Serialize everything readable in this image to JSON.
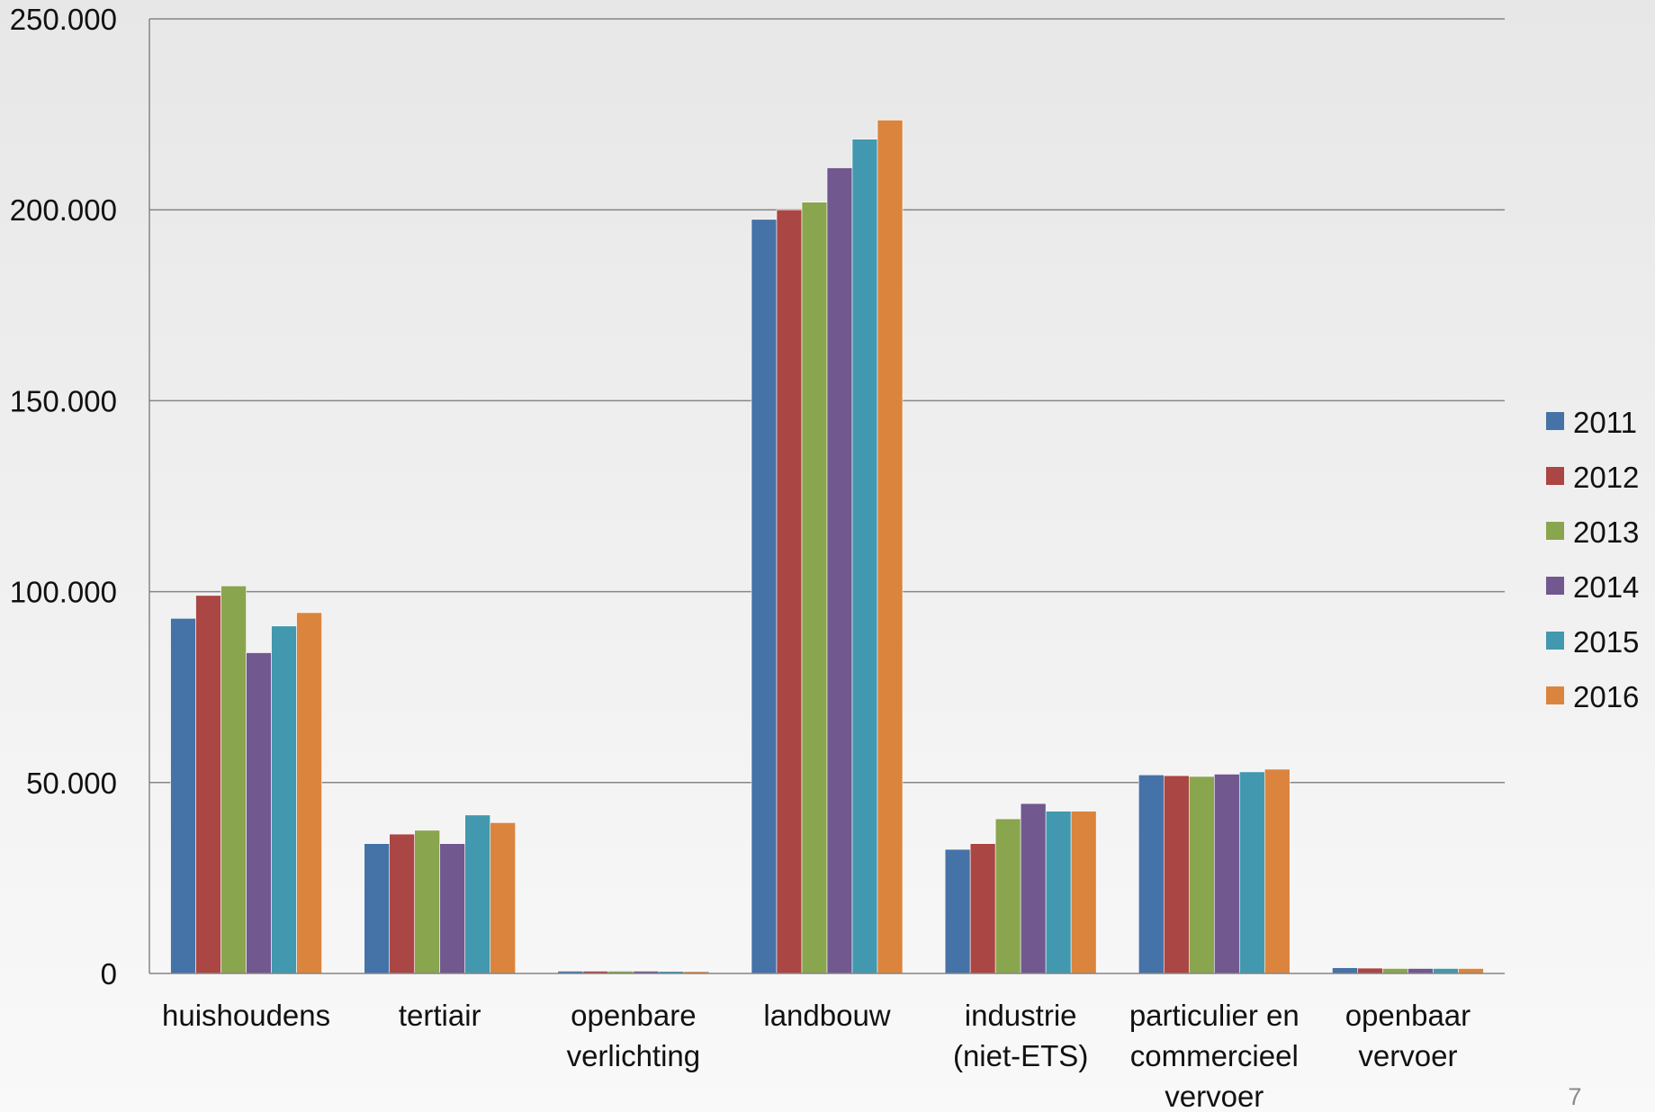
{
  "chart_data": {
    "type": "bar",
    "title": "",
    "xlabel": "",
    "ylabel": "",
    "ylim": [
      0,
      250000
    ],
    "yticks": [
      0,
      50000,
      100000,
      150000,
      200000,
      250000
    ],
    "ytick_labels": [
      "0",
      "50.000",
      "100.000",
      "150.000",
      "200.000",
      "250.000"
    ],
    "grid": true,
    "legend_position": "right",
    "categories": [
      [
        "huishoudens"
      ],
      [
        "tertiair"
      ],
      [
        "openbare",
        "verlichting"
      ],
      [
        "landbouw"
      ],
      [
        "industrie",
        "(niet-ETS)"
      ],
      [
        "particulier en",
        "commercieel",
        "vervoer"
      ],
      [
        "openbaar",
        "vervoer"
      ]
    ],
    "series": [
      {
        "name": "2011",
        "color": "#4572a7",
        "values": [
          93000,
          34000,
          600,
          197500,
          32500,
          52000,
          1500
        ]
      },
      {
        "name": "2012",
        "color": "#aa4643",
        "values": [
          99000,
          36500,
          600,
          200000,
          34000,
          51800,
          1400
        ]
      },
      {
        "name": "2013",
        "color": "#89a54e",
        "values": [
          101500,
          37500,
          600,
          202000,
          40500,
          51600,
          1300
        ]
      },
      {
        "name": "2014",
        "color": "#71588f",
        "values": [
          84000,
          34000,
          600,
          211000,
          44500,
          52200,
          1300
        ]
      },
      {
        "name": "2015",
        "color": "#4198af",
        "values": [
          91000,
          41500,
          550,
          218500,
          42500,
          52800,
          1300
        ]
      },
      {
        "name": "2016",
        "color": "#db843d",
        "values": [
          94500,
          39500,
          500,
          223500,
          42500,
          53500,
          1300
        ]
      }
    ]
  },
  "page_number": "7"
}
